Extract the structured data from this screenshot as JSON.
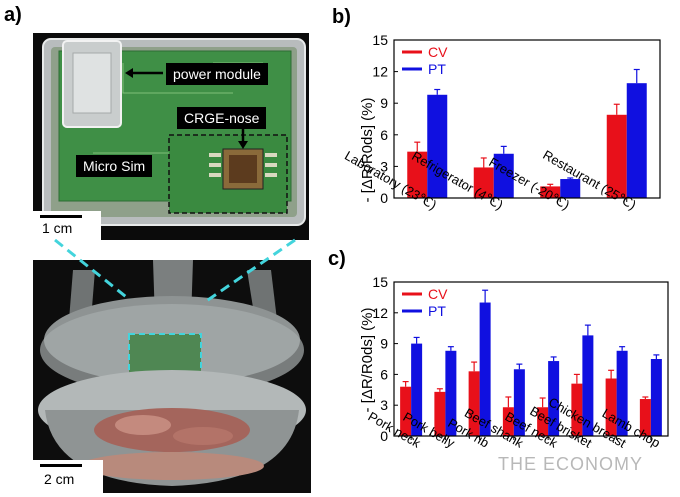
{
  "panels": {
    "a": "a)",
    "b": "b)",
    "c": "c)"
  },
  "photo": {
    "callouts": {
      "power_module": "power module",
      "crge_nose": "CRGE-nose",
      "micro_sim": "Micro Sim"
    },
    "scale_top": "1 cm",
    "scale_bottom": "2 cm"
  },
  "watermark": "THE ECONOMY",
  "colors": {
    "cv": "#e8101a",
    "pt": "#1010e0"
  },
  "chart_data": [
    {
      "id": "b",
      "type": "bar",
      "categories": [
        "Laboratory (23℃)",
        "Refrigerator (4℃)",
        "Freezer (-20℃)",
        "Restaurant (25℃)"
      ],
      "series": [
        {
          "name": "CV",
          "values": [
            4.4,
            2.9,
            1.1,
            7.9
          ],
          "errors": [
            0.9,
            0.9,
            0.2,
            1.0
          ]
        },
        {
          "name": "PT",
          "values": [
            9.8,
            4.2,
            1.8,
            10.9
          ],
          "errors": [
            0.5,
            0.7,
            0.1,
            1.3
          ]
        }
      ],
      "ylabel": "- [ΔR/R0ds] (%)",
      "ylim": [
        0,
        15
      ],
      "yticks": [
        0,
        3,
        6,
        9,
        12,
        15
      ],
      "legend": "top-left"
    },
    {
      "id": "c",
      "type": "bar",
      "categories": [
        "Pork neck",
        "Pork belly",
        "Pork rib",
        "Beef shank",
        "Beef neck",
        "Beef brisket",
        "Chicken breast",
        "Lamb chop"
      ],
      "series": [
        {
          "name": "CV",
          "values": [
            4.8,
            4.3,
            6.3,
            2.8,
            2.8,
            5.1,
            5.6,
            3.6
          ],
          "errors": [
            0.5,
            0.3,
            0.9,
            1.0,
            0.9,
            0.9,
            0.8,
            0.2
          ]
        },
        {
          "name": "PT",
          "values": [
            9.0,
            8.3,
            13.0,
            6.5,
            7.3,
            9.8,
            8.3,
            7.5
          ],
          "errors": [
            0.6,
            0.4,
            1.2,
            0.5,
            0.4,
            1.0,
            0.4,
            0.4
          ]
        }
      ],
      "ylabel": "- [ΔR/R0ds] (%)",
      "ylim": [
        0,
        15
      ],
      "yticks": [
        0,
        3,
        6,
        9,
        12,
        15
      ],
      "legend": "top-left"
    }
  ]
}
